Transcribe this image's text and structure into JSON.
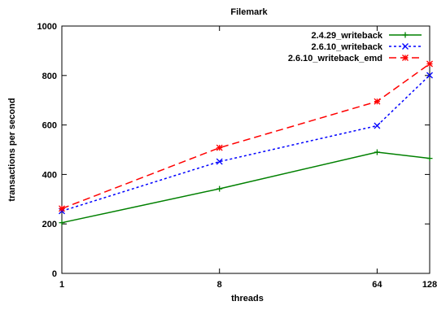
{
  "chart_data": {
    "type": "line",
    "title": "Filemark",
    "xlabel": "threads",
    "ylabel": "transactions per second",
    "x_scale": "log2",
    "categories": [
      "1",
      "8",
      "64",
      "128"
    ],
    "x": [
      1,
      8,
      64,
      128
    ],
    "ylim": [
      0,
      1000
    ],
    "yticks": [
      0,
      200,
      400,
      600,
      800,
      1000
    ],
    "grid": false,
    "legend_position": "top-right",
    "series": [
      {
        "name": "2.4.29_writeback",
        "values": [
          205,
          342,
          490,
          465
        ],
        "color": "#008000",
        "dash": "solid",
        "marker": "plus"
      },
      {
        "name": "2.6.10_writeback",
        "values": [
          252,
          452,
          597,
          801
        ],
        "color": "#0000ff",
        "dash": "dotted",
        "marker": "cross"
      },
      {
        "name": "2.6.10_writeback_emd",
        "values": [
          262,
          508,
          695,
          847
        ],
        "color": "#ff0000",
        "dash": "dashed",
        "marker": "star"
      }
    ]
  }
}
